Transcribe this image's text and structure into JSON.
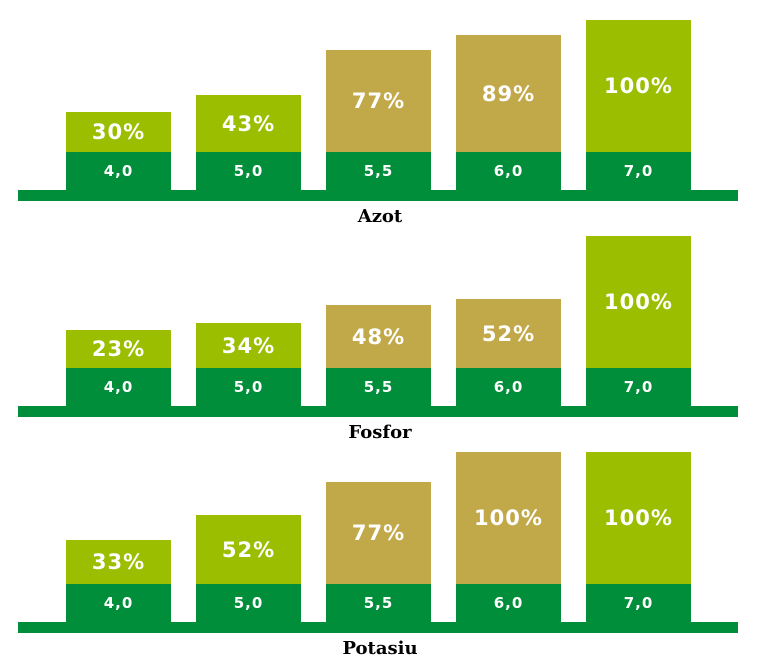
{
  "colors": {
    "good": "#9bbe00",
    "medium": "#c1a849",
    "base": "#008e3a"
  },
  "chart_data": [
    {
      "type": "bar",
      "title": "Azot",
      "categories": [
        "4,0",
        "5,0",
        "5,5",
        "6,0",
        "7,0"
      ],
      "values": [
        30,
        43,
        77,
        89,
        100
      ],
      "value_labels": [
        "30%",
        "43%",
        "77%",
        "89%",
        "100%"
      ],
      "bar_colors": [
        "good",
        "good",
        "medium",
        "medium",
        "good"
      ]
    },
    {
      "type": "bar",
      "title": "Fosfor",
      "categories": [
        "4,0",
        "5,0",
        "5,5",
        "6,0",
        "7,0"
      ],
      "values": [
        23,
        34,
        48,
        52,
        100
      ],
      "value_labels": [
        "23%",
        "34%",
        "48%",
        "52%",
        "100%"
      ],
      "bar_colors": [
        "good",
        "good",
        "medium",
        "medium",
        "good"
      ]
    },
    {
      "type": "bar",
      "title": "Potasiu",
      "categories": [
        "4,0",
        "5,0",
        "5,5",
        "6,0",
        "7,0"
      ],
      "values": [
        33,
        52,
        77,
        100,
        100
      ],
      "value_labels": [
        "33%",
        "52%",
        "77%",
        "100%",
        "100%"
      ],
      "bar_colors": [
        "good",
        "good",
        "medium",
        "medium",
        "good"
      ]
    }
  ]
}
